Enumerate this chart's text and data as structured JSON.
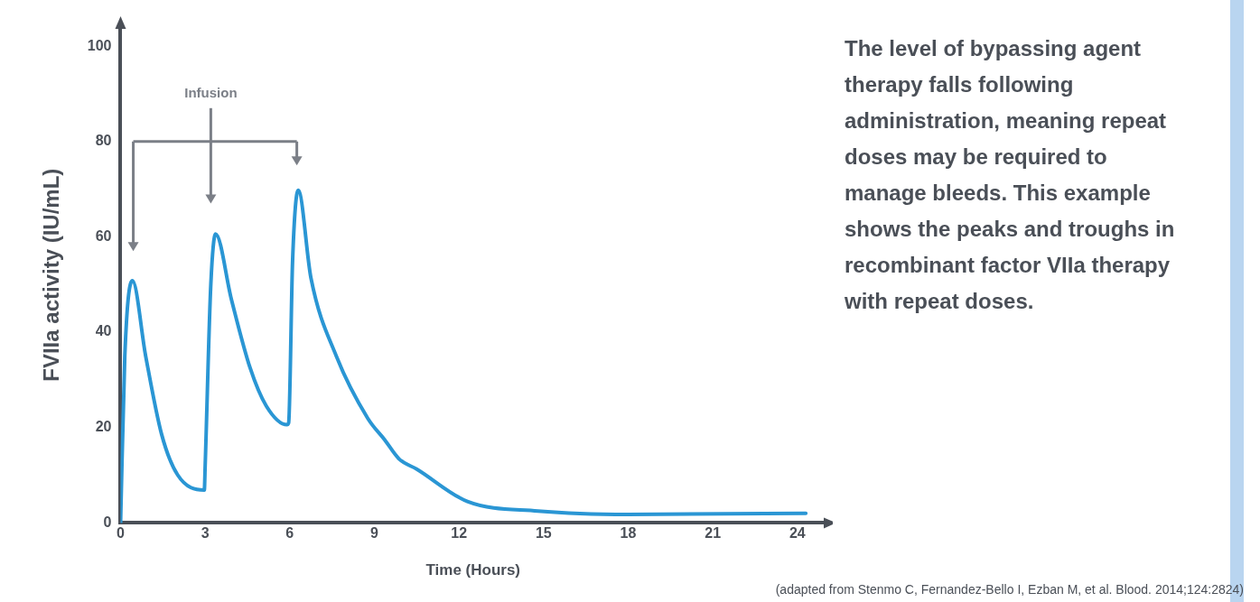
{
  "chart_data": {
    "type": "line",
    "xlabel": "Time (Hours)",
    "ylabel": "FVIIa activity (IU/mL)",
    "xlim": [
      0,
      25
    ],
    "xticks": [
      0,
      3,
      6,
      9,
      12,
      15,
      18,
      21,
      24
    ],
    "ylim": [
      0,
      104
    ],
    "yticks": [
      0,
      20,
      40,
      60,
      80,
      100
    ],
    "grid": false,
    "legend": false,
    "marker": "none",
    "line_style": "solid",
    "series": [
      {
        "color": "#2a96d4",
        "x": [
          0,
          0.15,
          0.42,
          0.89,
          1.45,
          2.02,
          2.97,
          3.0,
          3.2,
          3.37,
          3.93,
          4.6,
          5.17,
          5.9,
          5.96,
          6.1,
          6.3,
          6.75,
          7.65,
          8.77,
          9.37,
          9.88,
          10.5,
          12.3,
          14.8,
          18,
          24.3
        ],
        "values": [
          0,
          35,
          50.8,
          35,
          18.7,
          10.1,
          6.9,
          12,
          50,
          60.6,
          46.9,
          32.4,
          24.5,
          20.6,
          21,
          55,
          69.8,
          51.4,
          35,
          21.9,
          17.4,
          13.4,
          11.3,
          4.5,
          2.5,
          1.8,
          2
        ]
      }
    ],
    "annotations": [
      "Infusion",
      "The level of bypassing agent therapy falls following administration, meaning repeat doses may be required to manage bleeds. This example shows the peaks and troughs in recombinant factor VIIa therapy with repeat doses.",
      "(adapted from Stenmo C, Fernandez-Bello I, Ezban M, et al. Blood. 2014;124:2824)"
    ]
  }
}
